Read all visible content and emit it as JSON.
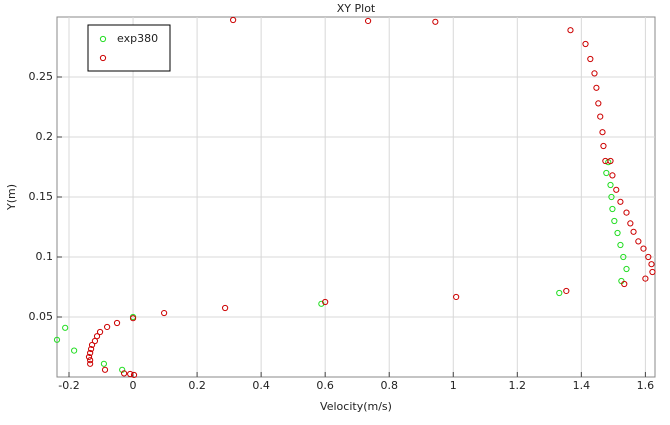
{
  "chart_data": {
    "type": "scatter",
    "title": "XY Plot",
    "x_label": "Velocity(m/s)",
    "y_label": "Y(m)",
    "xlim": [
      -0.2375,
      1.63
    ],
    "ylim": [
      0,
      0.3
    ],
    "xticks": [
      -0.2,
      0,
      0.2,
      0.4,
      0.6,
      0.8,
      1,
      1.2,
      1.4,
      1.6
    ],
    "yticks": [
      0.05,
      0.1,
      0.15,
      0.2,
      0.25
    ],
    "grid": true,
    "legend": "top-left",
    "series": [
      {
        "name": "exp380",
        "color": "#22dd22",
        "x": [
          -0.2375,
          -0.212,
          -0.184,
          -0.091,
          -0.034,
          0,
          0.588,
          1.331,
          1.484,
          1.478,
          1.491,
          1.494,
          1.497,
          1.503,
          1.513,
          1.522,
          1.531,
          1.541,
          1.525
        ],
        "values": [
          0.031,
          0.041,
          0.022,
          0.011,
          0.006,
          0.05,
          0.061,
          0.07,
          0.179,
          0.17,
          0.16,
          0.15,
          0.14,
          0.13,
          0.12,
          0.11,
          0.1,
          0.09,
          0.08
        ]
      },
      {
        "color": "#cc0000",
        "x": [
          0.3125,
          0.734,
          0.944,
          1.366,
          1.413,
          1.428,
          1.441,
          1.447,
          1.453,
          1.459,
          1.466,
          1.469,
          1.475,
          1.491,
          1.497,
          1.509,
          1.522,
          1.541,
          1.553,
          1.563,
          1.578,
          1.594,
          1.609,
          1.619,
          1.622,
          1.6,
          1.534,
          1.353,
          1.009,
          0.6,
          0.2875,
          0.097,
          0,
          -0.05,
          -0.081,
          -0.103,
          -0.1125,
          -0.119,
          -0.128,
          -0.131,
          -0.134,
          -0.1375,
          -0.134,
          -0.134,
          -0.0875,
          -0.028,
          -0.009,
          0.003
        ],
        "values": [
          0.2975,
          0.2967,
          0.296,
          0.289,
          0.2775,
          0.265,
          0.253,
          0.241,
          0.228,
          0.217,
          0.204,
          0.1925,
          0.18,
          0.18,
          0.168,
          0.156,
          0.146,
          0.137,
          0.128,
          0.121,
          0.113,
          0.107,
          0.1,
          0.094,
          0.0875,
          0.082,
          0.0775,
          0.0717,
          0.0667,
          0.0625,
          0.0575,
          0.0533,
          0.049,
          0.045,
          0.0417,
          0.0375,
          0.034,
          0.03,
          0.0267,
          0.0233,
          0.02,
          0.0167,
          0.014,
          0.011,
          0.006,
          0.003,
          0.0025,
          0.0017
        ]
      }
    ]
  }
}
